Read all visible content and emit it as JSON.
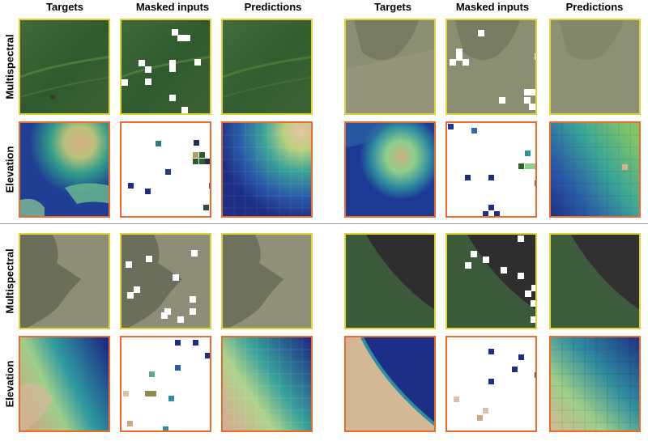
{
  "figure": {
    "column_headers": [
      "Targets",
      "Masked inputs",
      "Predictions",
      "Targets",
      "Masked inputs",
      "Predictions"
    ],
    "row_labels": [
      "Multispectral",
      "Elevation",
      "Multispectral",
      "Elevation"
    ],
    "colors": {
      "multispectral_border": "#e0d23a",
      "elevation_border": "#ee6a2a",
      "divider": "#9a9a9a",
      "mask_fill": "#ffffff"
    },
    "panel_kinds": [
      "target image",
      "masked input",
      "model prediction"
    ]
  }
}
